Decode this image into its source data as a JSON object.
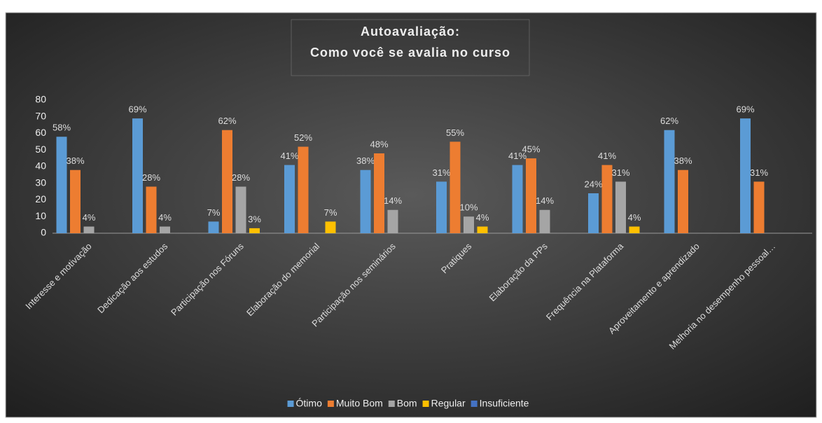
{
  "chart_data": {
    "type": "bar",
    "title": "Autoavaliação:",
    "subtitle": "Como você se avalia no curso",
    "categories": [
      "Interesse e motivação",
      "Dedicação aos estudos",
      "Participação nos Fóruns",
      "Elaboração do memorial",
      "Participação nos seminários",
      "Pratiques",
      "Elaboração da PPs",
      "Frequência na Plataforma",
      "Aproveitamento e aprendizado",
      "Melhoria no desempenho pessoal…"
    ],
    "series": [
      {
        "name": "Ótimo",
        "color": "#5b9bd5",
        "values": [
          58,
          69,
          7,
          41,
          38,
          31,
          41,
          24,
          62,
          69
        ],
        "value_labels": [
          "58%",
          "69%",
          "7%",
          "41%",
          "38%",
          "31%",
          "41%",
          "24%",
          "62%",
          "69%"
        ]
      },
      {
        "name": "Muito Bom",
        "color": "#ed7d31",
        "values": [
          38,
          28,
          62,
          52,
          48,
          55,
          45,
          41,
          38,
          31
        ],
        "value_labels": [
          "38%",
          "28%",
          "62%",
          "52%",
          "48%",
          "55%",
          "45%",
          "41%",
          "38%",
          "31%"
        ]
      },
      {
        "name": "Bom",
        "color": "#a5a5a5",
        "values": [
          4,
          4,
          28,
          null,
          14,
          10,
          14,
          31,
          null,
          null
        ],
        "value_labels": [
          "4%",
          "4%",
          "28%",
          null,
          "14%",
          "10%",
          "14%",
          "31%",
          null,
          null
        ]
      },
      {
        "name": "Regular",
        "color": "#ffc000",
        "values": [
          null,
          null,
          3,
          7,
          null,
          4,
          null,
          4,
          null,
          null
        ],
        "value_labels": [
          null,
          null,
          "3%",
          "7%",
          null,
          "4%",
          null,
          "4%",
          null,
          null
        ]
      },
      {
        "name": "Insuficiente",
        "color": "#4472c4",
        "values": [
          null,
          null,
          null,
          null,
          null,
          null,
          null,
          null,
          null,
          null
        ],
        "value_labels": [
          null,
          null,
          null,
          null,
          null,
          null,
          null,
          null,
          null,
          null
        ]
      }
    ],
    "ylim": [
      0,
      80
    ],
    "yticks": [
      0,
      10,
      20,
      30,
      40,
      50,
      60,
      70,
      80
    ],
    "grid": false,
    "legend": "bottom"
  }
}
